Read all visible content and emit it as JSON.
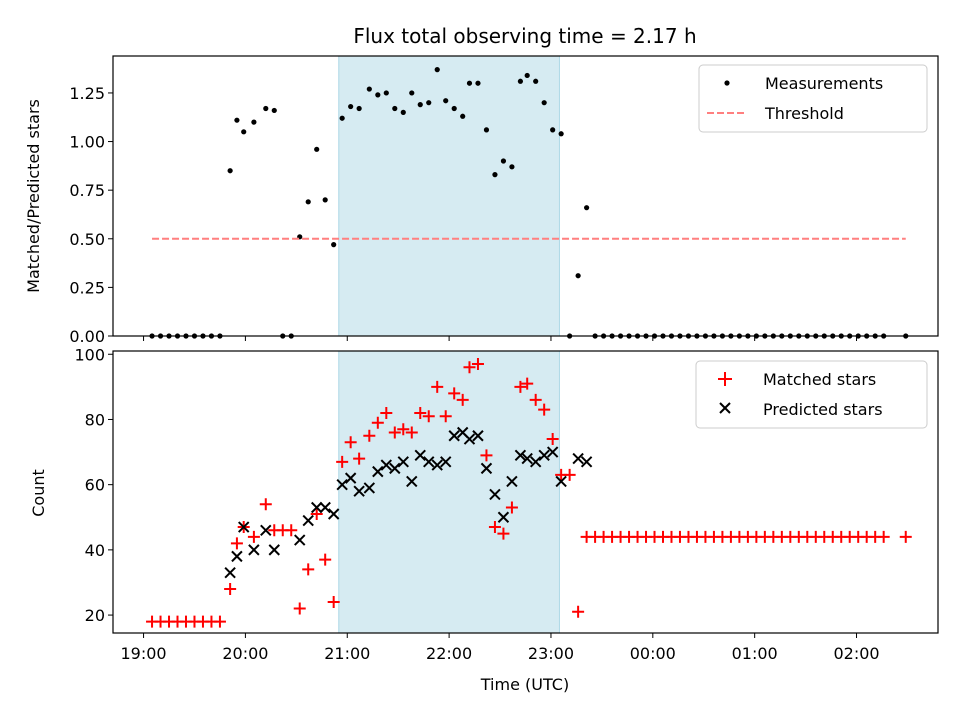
{
  "chart_data": [
    {
      "type": "scatter",
      "title": "Flux total observing time = 2.17 h",
      "xlabel": "",
      "ylabel": "Matched/Predicted stars",
      "xlim": [
        "18:42",
        "02:48"
      ],
      "ylim": [
        0,
        1.44
      ],
      "x_ticks": [
        "19:00",
        "20:00",
        "21:00",
        "22:00",
        "23:00",
        "00:00",
        "01:00",
        "02:00"
      ],
      "y_ticks": [
        "0.00",
        "0.25",
        "0.50",
        "0.75",
        "1.00",
        "1.25"
      ],
      "highlight_span": {
        "from": "20:55",
        "to": "23:05",
        "color": "#add8e6"
      },
      "legend": "upper right",
      "series": [
        {
          "name": "Measurements",
          "color": "#000000",
          "marker": "dot",
          "points": [
            [
              "19:05",
              0
            ],
            [
              "19:10",
              0
            ],
            [
              "19:15",
              0
            ],
            [
              "19:20",
              0
            ],
            [
              "19:25",
              0
            ],
            [
              "19:30",
              0
            ],
            [
              "19:35",
              0
            ],
            [
              "19:40",
              0
            ],
            [
              "19:45",
              0
            ],
            [
              "19:51",
              0.85
            ],
            [
              "19:55",
              1.11
            ],
            [
              "19:59",
              1.05
            ],
            [
              "20:05",
              1.1
            ],
            [
              "20:12",
              1.17
            ],
            [
              "20:17",
              1.16
            ],
            [
              "20:22",
              0
            ],
            [
              "20:27",
              0
            ],
            [
              "20:32",
              0.51
            ],
            [
              "20:37",
              0.69
            ],
            [
              "20:42",
              0.96
            ],
            [
              "20:47",
              0.7
            ],
            [
              "20:52",
              0.47
            ],
            [
              "20:57",
              1.12
            ],
            [
              "21:02",
              1.18
            ],
            [
              "21:07",
              1.17
            ],
            [
              "21:13",
              1.27
            ],
            [
              "21:18",
              1.24
            ],
            [
              "21:23",
              1.25
            ],
            [
              "21:28",
              1.17
            ],
            [
              "21:33",
              1.15
            ],
            [
              "21:38",
              1.25
            ],
            [
              "21:43",
              1.19
            ],
            [
              "21:48",
              1.2
            ],
            [
              "21:53",
              1.37
            ],
            [
              "21:58",
              1.21
            ],
            [
              "22:03",
              1.17
            ],
            [
              "22:08",
              1.13
            ],
            [
              "22:12",
              1.3
            ],
            [
              "22:17",
              1.3
            ],
            [
              "22:22",
              1.06
            ],
            [
              "22:27",
              0.83
            ],
            [
              "22:32",
              0.9
            ],
            [
              "22:37",
              0.87
            ],
            [
              "22:42",
              1.31
            ],
            [
              "22:46",
              1.34
            ],
            [
              "22:51",
              1.31
            ],
            [
              "22:56",
              1.2
            ],
            [
              "23:01",
              1.06
            ],
            [
              "23:06",
              1.04
            ],
            [
              "23:11",
              0
            ],
            [
              "23:16",
              0.31
            ],
            [
              "23:21",
              0.66
            ],
            [
              "23:26",
              0
            ],
            [
              "23:31",
              0
            ],
            [
              "23:36",
              0
            ],
            [
              "23:41",
              0
            ],
            [
              "23:46",
              0
            ],
            [
              "23:51",
              0
            ],
            [
              "23:56",
              0
            ],
            [
              "00:01",
              0
            ],
            [
              "00:06",
              0
            ],
            [
              "00:11",
              0
            ],
            [
              "00:16",
              0
            ],
            [
              "00:21",
              0
            ],
            [
              "00:26",
              0
            ],
            [
              "00:31",
              0
            ],
            [
              "00:36",
              0
            ],
            [
              "00:41",
              0
            ],
            [
              "00:46",
              0
            ],
            [
              "00:51",
              0
            ],
            [
              "00:56",
              0
            ],
            [
              "01:01",
              0
            ],
            [
              "01:06",
              0
            ],
            [
              "01:11",
              0
            ],
            [
              "01:16",
              0
            ],
            [
              "01:21",
              0
            ],
            [
              "01:26",
              0
            ],
            [
              "01:31",
              0
            ],
            [
              "01:36",
              0
            ],
            [
              "01:41",
              0
            ],
            [
              "01:46",
              0
            ],
            [
              "01:51",
              0
            ],
            [
              "01:56",
              0
            ],
            [
              "02:01",
              0
            ],
            [
              "02:06",
              0
            ],
            [
              "02:11",
              0
            ],
            [
              "02:16",
              0
            ],
            [
              "02:29",
              0
            ]
          ]
        },
        {
          "name": "Threshold",
          "color": "#ff7f7f",
          "style": "dashed-line",
          "points": [
            [
              "19:05",
              0.5
            ],
            [
              "02:29",
              0.5
            ]
          ]
        }
      ]
    },
    {
      "type": "scatter",
      "title": "",
      "xlabel": "Time (UTC)",
      "ylabel": "Count",
      "xlim": [
        "18:42",
        "02:48"
      ],
      "ylim": [
        14.5,
        101
      ],
      "x_ticks": [
        "19:00",
        "20:00",
        "21:00",
        "22:00",
        "23:00",
        "00:00",
        "01:00",
        "02:00"
      ],
      "y_ticks": [
        "20",
        "40",
        "60",
        "80",
        "100"
      ],
      "highlight_span": {
        "from": "20:55",
        "to": "23:05",
        "color": "#add8e6"
      },
      "legend": "upper right",
      "series": [
        {
          "name": "Matched stars",
          "color": "#ff0000",
          "marker": "plus",
          "points": [
            [
              "19:05",
              18
            ],
            [
              "19:10",
              18
            ],
            [
              "19:15",
              18
            ],
            [
              "19:20",
              18
            ],
            [
              "19:25",
              18
            ],
            [
              "19:30",
              18
            ],
            [
              "19:35",
              18
            ],
            [
              "19:40",
              18
            ],
            [
              "19:45",
              18
            ],
            [
              "19:51",
              28
            ],
            [
              "19:55",
              42
            ],
            [
              "19:59",
              47
            ],
            [
              "20:05",
              44
            ],
            [
              "20:12",
              54
            ],
            [
              "20:17",
              46
            ],
            [
              "20:22",
              46
            ],
            [
              "20:27",
              46
            ],
            [
              "20:32",
              22
            ],
            [
              "20:37",
              34
            ],
            [
              "20:42",
              51
            ],
            [
              "20:47",
              37
            ],
            [
              "20:52",
              24
            ],
            [
              "20:57",
              67
            ],
            [
              "21:02",
              73
            ],
            [
              "21:07",
              68
            ],
            [
              "21:13",
              75
            ],
            [
              "21:18",
              79
            ],
            [
              "21:23",
              82
            ],
            [
              "21:28",
              76
            ],
            [
              "21:33",
              77
            ],
            [
              "21:38",
              76
            ],
            [
              "21:43",
              82
            ],
            [
              "21:48",
              81
            ],
            [
              "21:53",
              90
            ],
            [
              "21:58",
              81
            ],
            [
              "22:03",
              88
            ],
            [
              "22:08",
              86
            ],
            [
              "22:12",
              96
            ],
            [
              "22:17",
              97
            ],
            [
              "22:22",
              69
            ],
            [
              "22:27",
              47
            ],
            [
              "22:32",
              45
            ],
            [
              "22:37",
              53
            ],
            [
              "22:42",
              90
            ],
            [
              "22:46",
              91
            ],
            [
              "22:51",
              86
            ],
            [
              "22:56",
              83
            ],
            [
              "23:01",
              74
            ],
            [
              "23:06",
              63
            ],
            [
              "23:11",
              63
            ],
            [
              "23:16",
              21
            ],
            [
              "23:21",
              44
            ],
            [
              "23:26",
              44
            ],
            [
              "23:31",
              44
            ],
            [
              "23:36",
              44
            ],
            [
              "23:41",
              44
            ],
            [
              "23:46",
              44
            ],
            [
              "23:51",
              44
            ],
            [
              "23:56",
              44
            ],
            [
              "00:01",
              44
            ],
            [
              "00:06",
              44
            ],
            [
              "00:11",
              44
            ],
            [
              "00:16",
              44
            ],
            [
              "00:21",
              44
            ],
            [
              "00:26",
              44
            ],
            [
              "00:31",
              44
            ],
            [
              "00:36",
              44
            ],
            [
              "00:41",
              44
            ],
            [
              "00:46",
              44
            ],
            [
              "00:51",
              44
            ],
            [
              "00:56",
              44
            ],
            [
              "01:01",
              44
            ],
            [
              "01:06",
              44
            ],
            [
              "01:11",
              44
            ],
            [
              "01:16",
              44
            ],
            [
              "01:21",
              44
            ],
            [
              "01:26",
              44
            ],
            [
              "01:31",
              44
            ],
            [
              "01:36",
              44
            ],
            [
              "01:41",
              44
            ],
            [
              "01:46",
              44
            ],
            [
              "01:51",
              44
            ],
            [
              "01:56",
              44
            ],
            [
              "02:01",
              44
            ],
            [
              "02:06",
              44
            ],
            [
              "02:11",
              44
            ],
            [
              "02:16",
              44
            ],
            [
              "02:29",
              44
            ]
          ]
        },
        {
          "name": "Predicted stars",
          "color": "#000000",
          "marker": "x",
          "points": [
            [
              "19:51",
              33
            ],
            [
              "19:55",
              38
            ],
            [
              "19:59",
              47
            ],
            [
              "20:05",
              40
            ],
            [
              "20:12",
              46
            ],
            [
              "20:17",
              40
            ],
            [
              "20:32",
              43
            ],
            [
              "20:37",
              49
            ],
            [
              "20:42",
              53
            ],
            [
              "20:47",
              53
            ],
            [
              "20:52",
              51
            ],
            [
              "20:57",
              60
            ],
            [
              "21:02",
              62
            ],
            [
              "21:07",
              58
            ],
            [
              "21:13",
              59
            ],
            [
              "21:18",
              64
            ],
            [
              "21:23",
              66
            ],
            [
              "21:28",
              65
            ],
            [
              "21:33",
              67
            ],
            [
              "21:38",
              61
            ],
            [
              "21:43",
              69
            ],
            [
              "21:48",
              67
            ],
            [
              "21:53",
              66
            ],
            [
              "21:58",
              67
            ],
            [
              "22:03",
              75
            ],
            [
              "22:08",
              76
            ],
            [
              "22:12",
              74
            ],
            [
              "22:17",
              75
            ],
            [
              "22:22",
              65
            ],
            [
              "22:27",
              57
            ],
            [
              "22:32",
              50
            ],
            [
              "22:37",
              61
            ],
            [
              "22:42",
              69
            ],
            [
              "22:46",
              68
            ],
            [
              "22:51",
              67
            ],
            [
              "22:56",
              69
            ],
            [
              "23:01",
              70
            ],
            [
              "23:06",
              61
            ],
            [
              "23:16",
              68
            ],
            [
              "23:21",
              67
            ]
          ]
        }
      ]
    }
  ]
}
